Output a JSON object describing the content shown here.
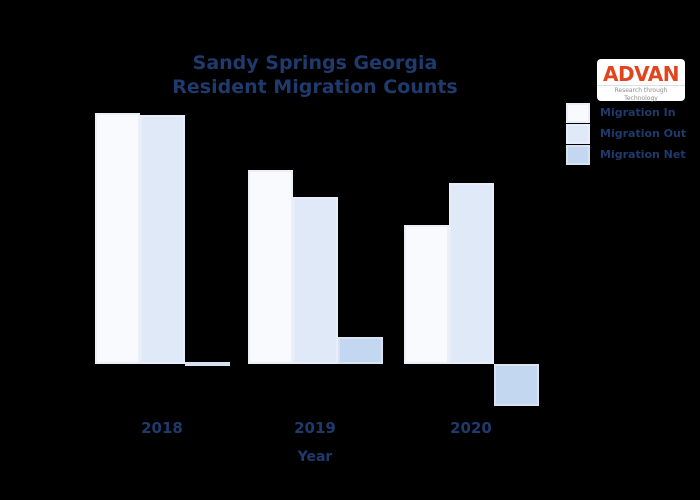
{
  "page": {
    "background": "#000000",
    "text_color": "#1f3a6d"
  },
  "title": {
    "line1": "Sandy Springs Georgia",
    "line2": "Resident Migration Counts"
  },
  "logo": {
    "text": "ADVAN",
    "tagline": "Research through Technology",
    "text_color": "#e2441f",
    "background": "#ffffff"
  },
  "chart_data": {
    "type": "bar",
    "title": "Sandy Springs Georgia Resident Migration Counts",
    "categories": [
      "2018",
      "2019",
      "2020"
    ],
    "series": [
      {
        "name": "Migration In",
        "fill": "#f8fafd",
        "border": "#edeff6",
        "values": [
          251,
          194,
          139
        ]
      },
      {
        "name": "Migration Out",
        "fill": "#dfe9f8",
        "border": "#e8eef9",
        "values": [
          249,
          167,
          181
        ]
      },
      {
        "name": "Migration Net",
        "fill": "#c3d7f0",
        "border": "#d9e2f1",
        "values": [
          2,
          27,
          -42
        ]
      }
    ],
    "xlabel": "Year",
    "ylabel": "",
    "y_axis_labels_visible": false,
    "grid": false,
    "legend_position": "top-right",
    "ylim": [
      -50,
      260
    ],
    "units_note": "y-axis is unlabeled in the chart; values are relative bar magnitudes"
  }
}
